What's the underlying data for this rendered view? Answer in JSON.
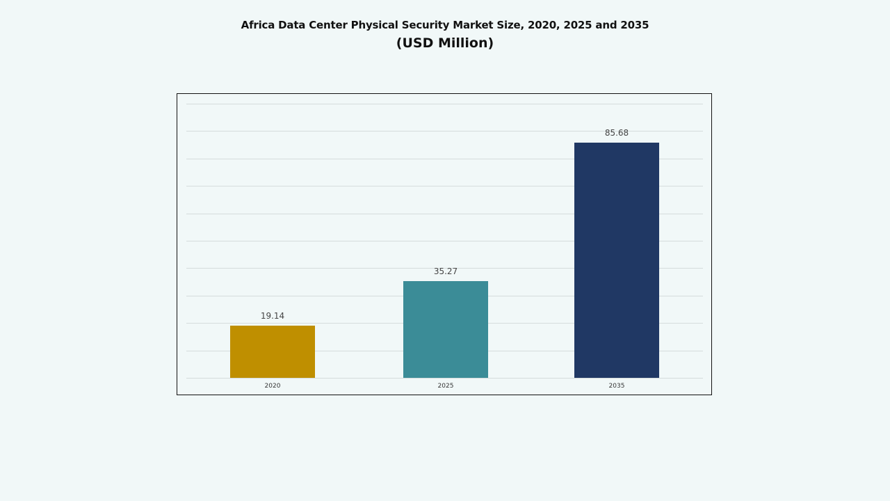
{
  "chart_data": {
    "type": "bar",
    "title": "Africa Data Center Physical Security Market Size, 2020, 2025 and 2035",
    "subtitle": "(USD Million)",
    "categories": [
      "2020",
      "2025",
      "2035"
    ],
    "values": [
      19.14,
      35.27,
      85.68
    ],
    "value_labels": [
      "19.14",
      "35.27",
      "85.68"
    ],
    "colors": [
      "#bf8f00",
      "#3b8c97",
      "#203864"
    ],
    "xlabel": "",
    "ylabel": "",
    "ylim": [
      0,
      100
    ],
    "grid": true,
    "legend": "none"
  }
}
